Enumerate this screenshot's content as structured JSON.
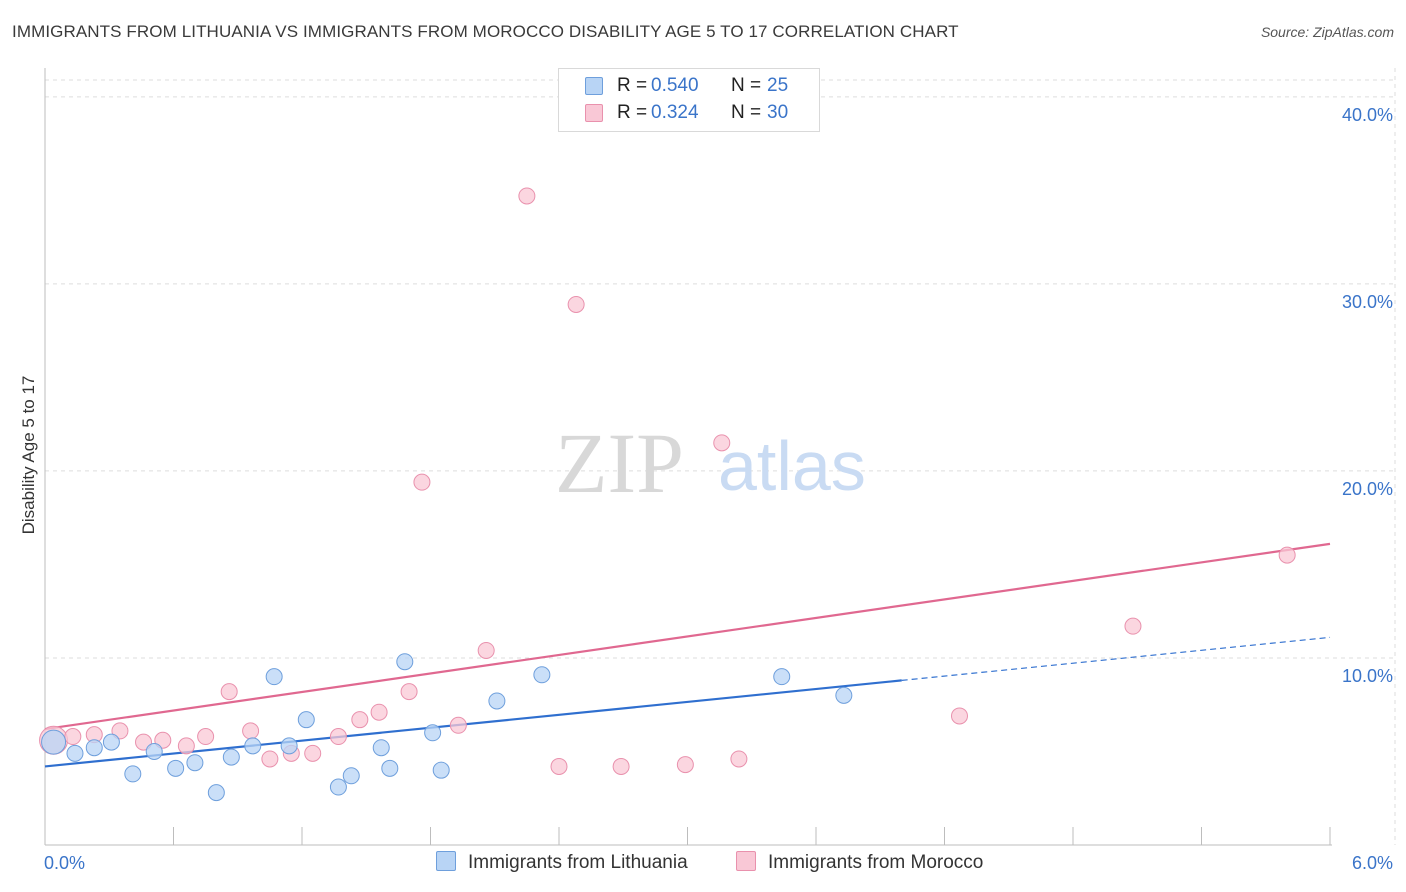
{
  "title": "IMMIGRANTS FROM LITHUANIA VS IMMIGRANTS FROM MOROCCO DISABILITY AGE 5 TO 17 CORRELATION CHART",
  "source": "Source: ZipAtlas.com",
  "watermark": "ZIPatlas",
  "legend": {
    "r_label": "R =",
    "n_label": "N =",
    "lithuania": {
      "r": "0.540",
      "n": "25",
      "color": "#a8c8f0"
    },
    "morocco": {
      "r": "0.324",
      "n": "30",
      "color": "#f7b6c8"
    }
  },
  "colors": {
    "lithuania_fill": "#b8d4f5",
    "lithuania_stroke": "#6e9fdc",
    "lithuania_line": "#2f6fcf",
    "morocco_fill": "#f9c8d6",
    "morocco_stroke": "#e991ad",
    "morocco_line": "#e06890",
    "axis_label": "#3a74c9"
  },
  "chart_data": {
    "type": "scatter",
    "title": "IMMIGRANTS FROM LITHUANIA VS IMMIGRANTS FROM MOROCCO DISABILITY AGE 5 TO 17 CORRELATION CHART",
    "xlabel": "",
    "ylabel": "Disability Age 5 to 17",
    "xlim": [
      0,
      6
    ],
    "ylim": [
      0,
      40
    ],
    "x_tick_labels": [
      "0.0%",
      "6.0%"
    ],
    "y_ticks": [
      10,
      20,
      30,
      40
    ],
    "y_tick_labels": [
      "10.0%",
      "20.0%",
      "30.0%",
      "40.0%"
    ],
    "grid": true,
    "series": [
      {
        "name": "Immigrants from Lithuania",
        "r": 0.54,
        "n": 25,
        "points": [
          [
            0.04,
            5.5
          ],
          [
            0.14,
            4.9
          ],
          [
            0.23,
            5.2
          ],
          [
            0.31,
            5.5
          ],
          [
            0.41,
            3.8
          ],
          [
            0.51,
            5.0
          ],
          [
            0.61,
            4.1
          ],
          [
            0.7,
            4.4
          ],
          [
            0.8,
            2.8
          ],
          [
            0.87,
            4.7
          ],
          [
            0.97,
            5.3
          ],
          [
            1.07,
            9.0
          ],
          [
            1.14,
            5.3
          ],
          [
            1.22,
            6.7
          ],
          [
            1.37,
            3.1
          ],
          [
            1.43,
            3.7
          ],
          [
            1.57,
            5.2
          ],
          [
            1.61,
            4.1
          ],
          [
            1.68,
            9.8
          ],
          [
            1.81,
            6.0
          ],
          [
            1.85,
            4.0
          ],
          [
            2.11,
            7.7
          ],
          [
            2.32,
            9.1
          ],
          [
            3.44,
            9.0
          ],
          [
            3.73,
            8.0
          ]
        ],
        "trend": {
          "x0": 0,
          "y0": 4.2,
          "x1": 4.0,
          "y1": 8.8,
          "dashed_to_x": 6.0,
          "dashed_to_y": 11.1
        }
      },
      {
        "name": "Immigrants from Morocco",
        "r": 0.324,
        "n": 30,
        "points": [
          [
            0.04,
            5.6
          ],
          [
            0.13,
            5.8
          ],
          [
            0.23,
            5.9
          ],
          [
            0.35,
            6.1
          ],
          [
            0.46,
            5.5
          ],
          [
            0.55,
            5.6
          ],
          [
            0.66,
            5.3
          ],
          [
            0.75,
            5.8
          ],
          [
            0.86,
            8.2
          ],
          [
            0.96,
            6.1
          ],
          [
            1.05,
            4.6
          ],
          [
            1.15,
            4.9
          ],
          [
            1.25,
            4.9
          ],
          [
            1.37,
            5.8
          ],
          [
            1.47,
            6.7
          ],
          [
            1.56,
            7.1
          ],
          [
            1.7,
            8.2
          ],
          [
            1.76,
            19.4
          ],
          [
            1.93,
            6.4
          ],
          [
            2.06,
            10.4
          ],
          [
            2.25,
            34.7
          ],
          [
            2.4,
            4.2
          ],
          [
            2.48,
            28.9
          ],
          [
            2.69,
            4.2
          ],
          [
            2.99,
            4.3
          ],
          [
            3.16,
            21.5
          ],
          [
            3.24,
            4.6
          ],
          [
            4.27,
            6.9
          ],
          [
            5.08,
            11.7
          ],
          [
            5.8,
            15.5
          ]
        ],
        "trend": {
          "x0": 0,
          "y0": 6.2,
          "x1": 6.0,
          "y1": 16.1
        }
      }
    ]
  }
}
